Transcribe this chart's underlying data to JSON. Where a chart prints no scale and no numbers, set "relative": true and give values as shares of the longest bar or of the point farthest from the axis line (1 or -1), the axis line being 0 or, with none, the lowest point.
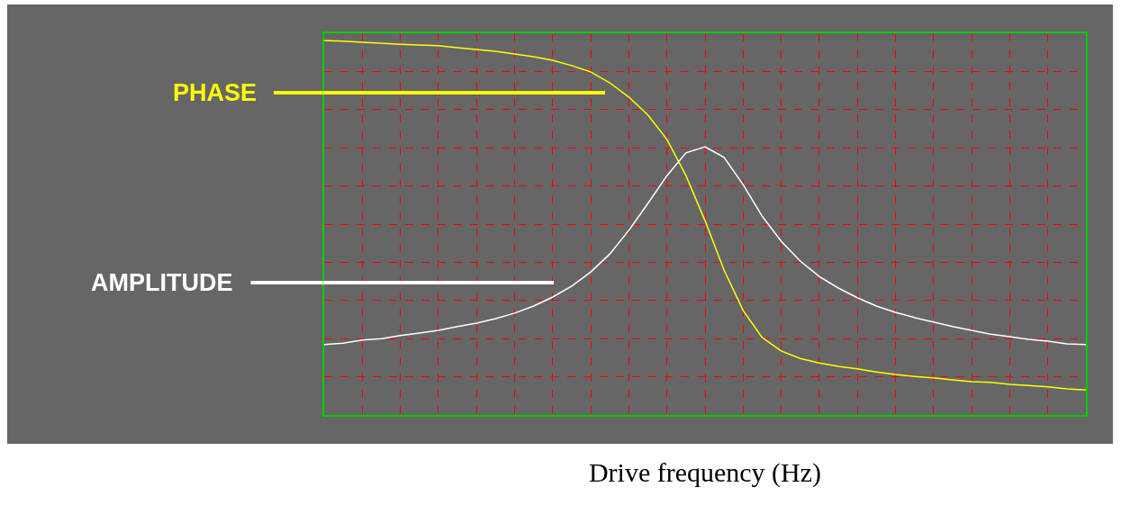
{
  "chart_data": {
    "type": "line",
    "relative": true,
    "xlabel": "Drive frequency (Hz)",
    "grid": true,
    "legend": false,
    "marker": "none",
    "line_style": "solid",
    "categories": [
      null,
      null,
      null,
      null,
      null,
      null,
      null,
      null,
      null,
      null,
      null,
      null,
      null,
      null,
      null,
      null,
      null,
      null,
      null,
      null,
      null,
      null,
      null,
      null,
      null,
      null,
      null,
      null,
      null,
      null,
      null,
      null,
      null,
      null,
      null,
      null,
      null,
      null,
      null,
      null,
      null
    ],
    "series": [
      {
        "name": "PHASE",
        "color": "#ffff00",
        "values": [
          1.0,
          0.998,
          0.995,
          0.993,
          0.99,
          0.988,
          0.986,
          0.981,
          0.976,
          0.971,
          0.964,
          0.957,
          0.947,
          0.933,
          0.916,
          0.887,
          0.849,
          0.801,
          0.736,
          0.639,
          0.519,
          0.387,
          0.279,
          0.207,
          0.171,
          0.151,
          0.139,
          0.13,
          0.123,
          0.115,
          0.108,
          0.103,
          0.099,
          0.094,
          0.089,
          0.087,
          0.082,
          0.079,
          0.075,
          0.07,
          0.067
        ]
      },
      {
        "name": "AMPLITUDE",
        "color": "#ffffff",
        "values": [
          0.188,
          0.192,
          0.2,
          0.204,
          0.212,
          0.219,
          0.226,
          0.236,
          0.245,
          0.257,
          0.272,
          0.291,
          0.315,
          0.344,
          0.382,
          0.43,
          0.493,
          0.565,
          0.639,
          0.7,
          0.716,
          0.688,
          0.615,
          0.531,
          0.464,
          0.411,
          0.37,
          0.339,
          0.313,
          0.291,
          0.274,
          0.26,
          0.248,
          0.236,
          0.226,
          0.216,
          0.209,
          0.202,
          0.197,
          0.19,
          0.188
        ]
      }
    ]
  }
}
